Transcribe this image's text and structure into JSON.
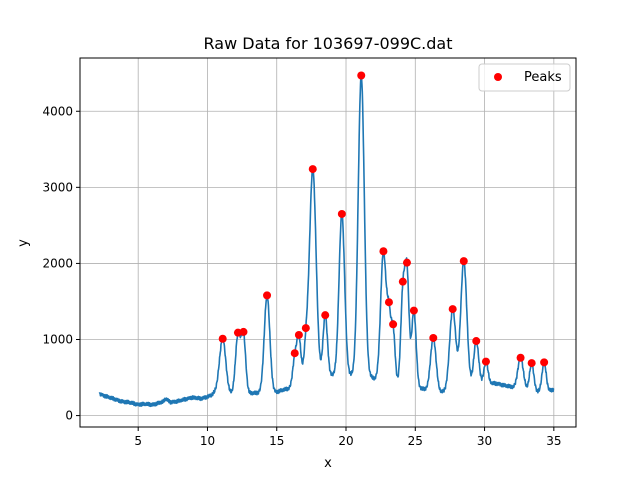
{
  "chart_data": {
    "type": "line",
    "title": "Raw Data for 103697-099C.dat",
    "xlabel": "x",
    "ylabel": "y",
    "xlim": [
      0.8,
      36.6
    ],
    "ylim": [
      -150,
      4700
    ],
    "xticks": [
      5,
      10,
      15,
      20,
      25,
      30,
      35
    ],
    "yticks": [
      0,
      1000,
      2000,
      3000,
      4000
    ],
    "grid": true,
    "legend": {
      "position": "top-right",
      "entries": [
        "Peaks"
      ]
    },
    "colors": {
      "line": "#1f77b4",
      "peaks": "#ff0000"
    },
    "baseline": [
      [
        2.2,
        290
      ],
      [
        3.0,
        230
      ],
      [
        4.0,
        180
      ],
      [
        5.0,
        150
      ],
      [
        6.0,
        145
      ],
      [
        6.8,
        180
      ],
      [
        7.0,
        220
      ],
      [
        7.3,
        180
      ],
      [
        8.0,
        190
      ],
      [
        8.8,
        240
      ],
      [
        9.5,
        220
      ],
      [
        10.3,
        270
      ],
      [
        10.8,
        340
      ],
      [
        12.0,
        260
      ],
      [
        13.5,
        300
      ],
      [
        14.7,
        300
      ],
      [
        15.8,
        350
      ],
      [
        16.8,
        420
      ],
      [
        18.6,
        500
      ],
      [
        19.5,
        560
      ],
      [
        20.5,
        520
      ],
      [
        21.8,
        500
      ],
      [
        22.5,
        450
      ],
      [
        25.2,
        360
      ],
      [
        26.8,
        300
      ],
      [
        28.2,
        360
      ],
      [
        30.6,
        420
      ],
      [
        31.0,
        420
      ],
      [
        32.0,
        370
      ],
      [
        33.0,
        330
      ],
      [
        34.5,
        310
      ],
      [
        35.0,
        350
      ]
    ],
    "peaks": {
      "name": "Peaks",
      "x": [
        11.1,
        12.2,
        12.6,
        14.3,
        16.3,
        16.6,
        17.1,
        17.6,
        18.5,
        19.7,
        21.1,
        22.7,
        23.1,
        23.4,
        24.1,
        24.4,
        24.9,
        26.3,
        27.7,
        28.5,
        29.4,
        30.1,
        32.6,
        33.4,
        34.3
      ],
      "y": [
        1010,
        1090,
        1100,
        1580,
        820,
        1060,
        1150,
        3240,
        1320,
        2650,
        4470,
        2160,
        1490,
        1200,
        1760,
        2010,
        1380,
        1020,
        1400,
        2030,
        980,
        710,
        760,
        690,
        700
      ],
      "widths": [
        0.22,
        0.18,
        0.16,
        0.2,
        0.15,
        0.15,
        0.15,
        0.24,
        0.16,
        0.2,
        0.22,
        0.2,
        0.14,
        0.14,
        0.15,
        0.15,
        0.16,
        0.2,
        0.22,
        0.22,
        0.18,
        0.15,
        0.2,
        0.15,
        0.15
      ]
    }
  }
}
